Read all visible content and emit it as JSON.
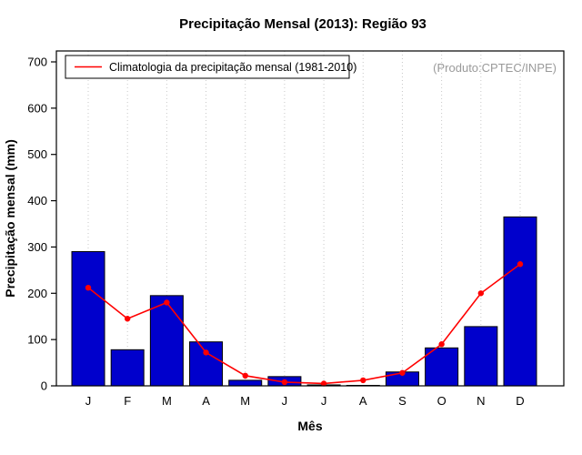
{
  "chart_data": {
    "type": "bar",
    "title": "Precipitação Mensal (2013): Região 93",
    "xlabel": "Mês",
    "ylabel": "Precipitação mensal (mm)",
    "ylim": [
      0,
      700
    ],
    "yticks": [
      0,
      100,
      200,
      300,
      400,
      500,
      600,
      700
    ],
    "categories": [
      "J",
      "F",
      "M",
      "A",
      "M",
      "J",
      "J",
      "A",
      "S",
      "O",
      "N",
      "D"
    ],
    "series": [
      {
        "name": "Precipitação Mensal (2013)",
        "type": "bar",
        "color": "#0000cc",
        "values": [
          290,
          78,
          195,
          95,
          12,
          20,
          2,
          1,
          30,
          82,
          128,
          365
        ]
      },
      {
        "name": "Climatologia da precipitação mensal (1981-2010)",
        "type": "line",
        "color": "#ff0000",
        "values": [
          212,
          145,
          180,
          72,
          22,
          8,
          5,
          12,
          28,
          90,
          200,
          263
        ]
      }
    ],
    "annotation": "(Produto:CPTEC/INPE)",
    "legend_position": "top-left",
    "grid": "vertical-dotted"
  },
  "colors": {
    "bar": "#0000cc",
    "bar_border": "#000000",
    "line": "#ff0000",
    "grid": "#c8c8c8",
    "annotation": "#9a9a9a"
  }
}
